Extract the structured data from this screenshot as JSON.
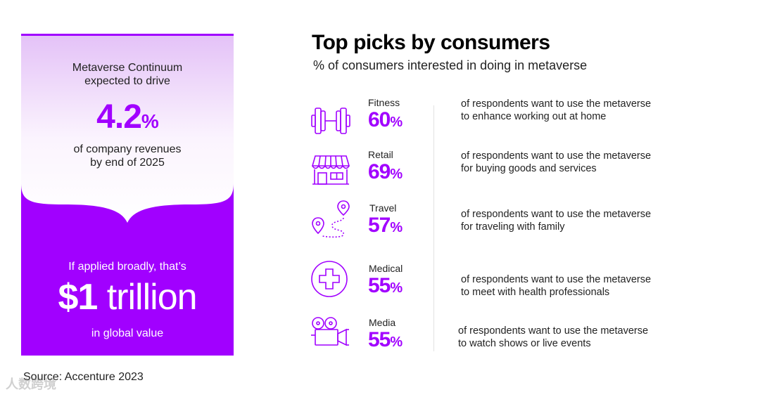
{
  "left_panel": {
    "top_line1": "Metaverse Continuum",
    "top_line2": "expected to drive",
    "big_value": "4.2",
    "big_unit": "%",
    "mid_line1": "of company revenues",
    "mid_line2": "by end of 2025",
    "bottom_line1": "If applied broadly, that’s",
    "bottom_value": "$1",
    "bottom_unit": " trillion",
    "bottom_line2": "in global value"
  },
  "source": "Source: Accenture 2023",
  "watermark": "人数跨境",
  "right": {
    "title": "Top picks by consumers",
    "subtitle": "% of consumers interested in doing in metaverse",
    "items": [
      {
        "category": "Fitness",
        "value": "60",
        "unit": "%",
        "desc1": "of respondents want to use the metaverse",
        "desc2": "to enhance working out at home",
        "icon": "dumbbell-icon"
      },
      {
        "category": "Retail",
        "value": "69",
        "unit": "%",
        "desc1": "of respondents want to use the metaverse",
        "desc2": "for buying goods and services",
        "icon": "storefront-icon"
      },
      {
        "category": "Travel",
        "value": "57",
        "unit": "%",
        "desc1": "of respondents want to use the metaverse",
        "desc2": "for traveling with family",
        "icon": "map-route-icon"
      },
      {
        "category": "Medical",
        "value": "55",
        "unit": "%",
        "desc1": "of respondents want to use the metaverse",
        "desc2": "to meet with health professionals",
        "icon": "medical-cross-icon"
      },
      {
        "category": "Media",
        "value": "55",
        "unit": "%",
        "desc1": "of respondents want to use the metaverse",
        "desc2": "to watch shows or live events",
        "icon": "video-camera-icon"
      }
    ]
  },
  "colors": {
    "accent": "#a100ff",
    "text": "#222222"
  }
}
